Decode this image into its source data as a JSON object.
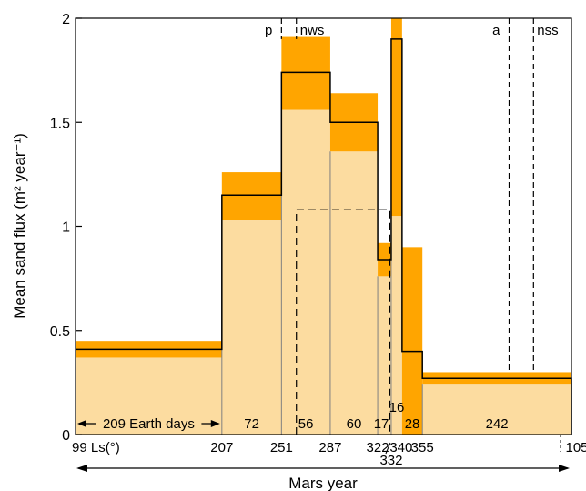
{
  "chart_data": {
    "type": "bar",
    "title": "",
    "ylabel": "Mean sand flux (m² year⁻¹)",
    "xlabel": "Mars year",
    "ylim": [
      0,
      2
    ],
    "yticks": [
      {
        "value": 0,
        "label": "0"
      },
      {
        "value": 0.5,
        "label": "0.5"
      },
      {
        "value": 1,
        "label": "1"
      },
      {
        "value": 1.5,
        "label": "1.5"
      },
      {
        "value": 2,
        "label": "2"
      }
    ],
    "colors": {
      "error_band": "#FFA500",
      "lower_fill": "#FCDCA0",
      "mean_line": "#000000",
      "separator": "#808080"
    },
    "intervals": [
      {
        "start": 99,
        "end": 207,
        "mean": 0.41,
        "low": 0.37,
        "high": 0.45,
        "days": "209 Earth days"
      },
      {
        "start": 207,
        "end": 251,
        "mean": 1.15,
        "low": 1.03,
        "high": 1.26,
        "days": "72"
      },
      {
        "start": 251,
        "end": 287,
        "mean": 1.74,
        "low": 1.56,
        "high": 1.91,
        "days": "56"
      },
      {
        "start": 287,
        "end": 322,
        "mean": 1.5,
        "low": 1.36,
        "high": 1.64,
        "days": "60"
      },
      {
        "start": 322,
        "end": 332,
        "mean": 0.84,
        "low": 0.76,
        "high": 0.92,
        "days": "17"
      },
      {
        "start": 332,
        "end": 340,
        "mean": 1.9,
        "low": 1.05,
        "high": 2.0,
        "days": "16"
      },
      {
        "start": 340,
        "end": 355,
        "mean": 0.4,
        "low": 0.0,
        "high": 0.9,
        "days": "28"
      },
      {
        "start": 355,
        "end": 465,
        "mean": 0.27,
        "low": 0.24,
        "high": 0.3,
        "days": "242"
      }
    ],
    "dashed_box": {
      "start": 262,
      "end": 331,
      "value": 1.08
    },
    "events": [
      {
        "label": "p",
        "ls": 251
      },
      {
        "label": "nws",
        "ls": 262
      },
      {
        "label": "a",
        "ls": 419
      },
      {
        "label": "nss",
        "ls": 437
      }
    ],
    "tick_labels": [
      {
        "text": "99 Ls(°)",
        "ls": 99
      },
      {
        "text": "207",
        "ls": 207
      },
      {
        "text": "251",
        "ls": 251
      },
      {
        "text": "287",
        "ls": 287
      },
      {
        "text": "322",
        "ls": 322
      },
      {
        "text": "332",
        "ls": 332
      },
      {
        "text": "340",
        "ls": 340
      },
      {
        "text": "355",
        "ls": 355
      },
      {
        "text": "105",
        "ls": 465
      }
    ],
    "x_range": [
      99,
      465
    ]
  }
}
